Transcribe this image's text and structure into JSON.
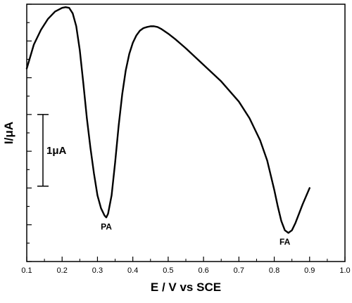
{
  "chart_data": {
    "type": "line",
    "xlabel": "E / V vs SCE",
    "ylabel": "I/μA",
    "xlim": [
      0.1,
      1.0
    ],
    "x_ticks": [
      "0.1",
      "0.2",
      "0.3",
      "0.4",
      "0.5",
      "0.6",
      "0.7",
      "0.8",
      "0.9",
      "1.0"
    ],
    "y_unit_scale_uA": 1,
    "y_range_uA": [
      0,
      7.0
    ],
    "series": [
      {
        "x": [
          0.1,
          0.12,
          0.14,
          0.16,
          0.18,
          0.2,
          0.21,
          0.22,
          0.23,
          0.24,
          0.25,
          0.26,
          0.27,
          0.28,
          0.29,
          0.3,
          0.31,
          0.32,
          0.325,
          0.33,
          0.34,
          0.35,
          0.36,
          0.37,
          0.38,
          0.39,
          0.4,
          0.41,
          0.42,
          0.43,
          0.44,
          0.45,
          0.46,
          0.47,
          0.48,
          0.5,
          0.52,
          0.55,
          0.6,
          0.65,
          0.7,
          0.73,
          0.76,
          0.78,
          0.8,
          0.81,
          0.82,
          0.83,
          0.84,
          0.85,
          0.86,
          0.87,
          0.88,
          0.9
        ],
        "y": [
          5.25,
          5.9,
          6.3,
          6.6,
          6.8,
          6.9,
          6.92,
          6.9,
          6.75,
          6.4,
          5.75,
          4.85,
          3.9,
          3.1,
          2.4,
          1.8,
          1.45,
          1.25,
          1.2,
          1.3,
          1.8,
          2.7,
          3.7,
          4.55,
          5.2,
          5.65,
          5.95,
          6.15,
          6.28,
          6.35,
          6.38,
          6.4,
          6.4,
          6.38,
          6.33,
          6.2,
          6.05,
          5.8,
          5.35,
          4.9,
          4.35,
          3.9,
          3.3,
          2.75,
          1.95,
          1.5,
          1.1,
          0.85,
          0.78,
          0.85,
          1.05,
          1.3,
          1.55,
          2.0
        ]
      }
    ],
    "annotations": [
      {
        "text": "PA",
        "x": 0.325,
        "y": 1.2
      },
      {
        "text": "FA",
        "x": 0.83,
        "y": 0.78
      }
    ],
    "scale_bar": {
      "label": "1μA",
      "value_uA": 1
    }
  }
}
